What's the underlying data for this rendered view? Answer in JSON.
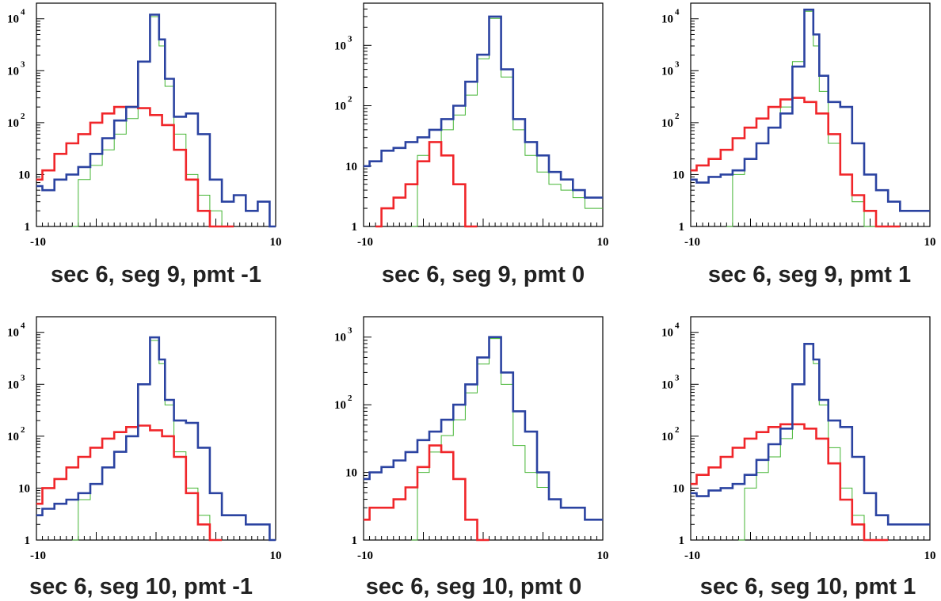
{
  "colors": {
    "blue": "#2b43a1",
    "red": "#f0262a",
    "green": "#44b533",
    "axis": "#000000"
  },
  "panel_labels": [
    "sec 6, seg 9, pmt -1",
    "sec 6, seg 9, pmt 0",
    "sec 6, seg 9, pmt 1",
    "sec 6, seg 10, pmt -1",
    "sec 6, seg 10, pmt 0",
    "sec 6, seg 10, pmt 1"
  ],
  "chart_data": [
    {
      "type": "line",
      "title": "sec 6, seg 9, pmt -1",
      "xlim": [
        -10,
        10
      ],
      "yscale": "log",
      "ylim": [
        1,
        20000
      ],
      "xtick_labels": [
        "-10",
        "10"
      ],
      "ytick_labels": [
        "1",
        "10",
        "10 2",
        "10 3",
        "10 4"
      ],
      "series": [
        {
          "color": "blue",
          "x": [
            -10,
            -9,
            -8,
            -7,
            -6,
            -5,
            -4,
            -3,
            -2,
            -1,
            0,
            0.5,
            1,
            2,
            3,
            4,
            5,
            6,
            7,
            8,
            9,
            10
          ],
          "y": [
            6,
            5,
            8,
            10,
            14,
            25,
            50,
            110,
            200,
            1500,
            12000,
            4000,
            700,
            130,
            150,
            60,
            8,
            3,
            4,
            2,
            3,
            1
          ]
        },
        {
          "color": "red",
          "x": [
            -10,
            -9,
            -8,
            -7,
            -6,
            -5,
            -4,
            -3,
            -2,
            -1,
            0,
            1,
            2,
            3,
            4,
            5,
            6
          ],
          "y": [
            8,
            12,
            25,
            40,
            60,
            100,
            150,
            200,
            200,
            190,
            140,
            90,
            30,
            8,
            2,
            1,
            1
          ]
        },
        {
          "color": "green",
          "x": [
            -7,
            -6,
            -5,
            -4,
            -3,
            -2,
            -1,
            0,
            0.5,
            1,
            2,
            3,
            4,
            5,
            6
          ],
          "y": [
            1,
            8,
            15,
            30,
            60,
            120,
            1500,
            11000,
            3000,
            500,
            60,
            10,
            4,
            2,
            1
          ]
        }
      ]
    },
    {
      "type": "line",
      "title": "sec 6, seg 9, pmt 0",
      "xlim": [
        -10,
        10
      ],
      "yscale": "log",
      "ylim": [
        1,
        5000
      ],
      "xtick_labels": [
        "-10",
        "10"
      ],
      "ytick_labels": [
        "1",
        "10",
        "10 2",
        "10 3"
      ],
      "series": [
        {
          "color": "blue",
          "x": [
            -10,
            -9,
            -8,
            -7,
            -6,
            -5,
            -4,
            -3,
            -2,
            -1,
            0,
            1,
            2,
            3,
            4,
            5,
            6,
            7,
            8,
            9,
            10
          ],
          "y": [
            10,
            12,
            18,
            20,
            25,
            30,
            40,
            60,
            100,
            250,
            700,
            3000,
            400,
            60,
            25,
            15,
            8,
            6,
            4,
            3,
            3
          ]
        },
        {
          "color": "red",
          "x": [
            -9,
            -8,
            -7,
            -6,
            -5,
            -4,
            -3,
            -2,
            -1
          ],
          "y": [
            1,
            2,
            3,
            5,
            12,
            25,
            15,
            5,
            1
          ]
        },
        {
          "color": "green",
          "x": [
            -6,
            -5,
            -4,
            -3,
            -2,
            -1,
            0,
            1,
            2,
            3,
            4,
            5,
            6,
            7,
            8,
            9,
            10
          ],
          "y": [
            1,
            15,
            25,
            40,
            70,
            150,
            600,
            2800,
            300,
            40,
            15,
            8,
            5,
            4,
            3,
            2,
            2
          ]
        }
      ]
    },
    {
      "type": "line",
      "title": "sec 6, seg 9, pmt 1",
      "xlim": [
        -10,
        10
      ],
      "yscale": "log",
      "ylim": [
        1,
        20000
      ],
      "xtick_labels": [
        "-10",
        "10"
      ],
      "ytick_labels": [
        "1",
        "10",
        "10 2",
        "10 3",
        "10 4"
      ],
      "series": [
        {
          "color": "blue",
          "x": [
            -10,
            -9,
            -8,
            -7,
            -6,
            -5,
            -4,
            -3,
            -2,
            -1,
            0,
            0.5,
            1,
            2,
            3,
            4,
            5,
            6,
            7,
            8,
            9,
            10
          ],
          "y": [
            8,
            7,
            9,
            10,
            12,
            20,
            40,
            80,
            150,
            1200,
            15000,
            5000,
            800,
            250,
            200,
            40,
            10,
            5,
            3,
            2,
            2,
            2
          ]
        },
        {
          "color": "red",
          "x": [
            -10,
            -9,
            -8,
            -7,
            -6,
            -5,
            -4,
            -3,
            -2,
            -1,
            0,
            1,
            2,
            3,
            4,
            5,
            6,
            7
          ],
          "y": [
            12,
            15,
            20,
            30,
            50,
            80,
            120,
            200,
            280,
            300,
            250,
            150,
            60,
            10,
            4,
            2,
            1,
            1
          ]
        },
        {
          "color": "green",
          "x": [
            -7,
            -6,
            -5,
            -4,
            -3,
            -2,
            -1,
            0,
            0.5,
            1,
            2,
            3,
            4,
            5
          ],
          "y": [
            1,
            10,
            20,
            40,
            80,
            200,
            1500,
            14000,
            3000,
            400,
            40,
            10,
            3,
            1
          ]
        }
      ]
    },
    {
      "type": "line",
      "title": "sec 6, seg 10, pmt -1",
      "xlim": [
        -10,
        10
      ],
      "yscale": "log",
      "ylim": [
        1,
        20000
      ],
      "xtick_labels": [
        "-10",
        "10"
      ],
      "ytick_labels": [
        "1",
        "10",
        "10 2",
        "10 3",
        "10 4"
      ],
      "series": [
        {
          "color": "blue",
          "x": [
            -10,
            -9,
            -8,
            -7,
            -6,
            -5,
            -4,
            -3,
            -2,
            -1,
            0,
            0.5,
            1,
            2,
            3,
            4,
            5,
            6,
            7,
            8,
            9,
            10
          ],
          "y": [
            3,
            4,
            5,
            6,
            8,
            12,
            25,
            50,
            100,
            1000,
            8000,
            3000,
            500,
            200,
            180,
            60,
            8,
            3,
            3,
            2,
            2,
            1
          ]
        },
        {
          "color": "red",
          "x": [
            -10,
            -9,
            -8,
            -7,
            -6,
            -5,
            -4,
            -3,
            -2,
            -1,
            0,
            1,
            2,
            3,
            4,
            5
          ],
          "y": [
            5,
            10,
            15,
            25,
            40,
            60,
            90,
            120,
            150,
            160,
            130,
            100,
            40,
            8,
            2,
            1
          ]
        },
        {
          "color": "green",
          "x": [
            -7,
            -6,
            -5,
            -4,
            -3,
            -2,
            -1,
            0,
            0.5,
            1,
            2,
            3,
            4,
            5
          ],
          "y": [
            1,
            6,
            12,
            25,
            50,
            100,
            1000,
            7000,
            2500,
            400,
            50,
            10,
            3,
            1
          ]
        }
      ]
    },
    {
      "type": "line",
      "title": "sec 6, seg 10, pmt 0",
      "xlim": [
        -10,
        10
      ],
      "yscale": "log",
      "ylim": [
        1,
        2000
      ],
      "xtick_labels": [
        "-10",
        "10"
      ],
      "ytick_labels": [
        "1",
        "10",
        "10 2",
        "10 3"
      ],
      "series": [
        {
          "color": "blue",
          "x": [
            -10,
            -9,
            -8,
            -7,
            -6,
            -5,
            -4,
            -3,
            -2,
            -1,
            0,
            1,
            2,
            3,
            4,
            5,
            6,
            7,
            8,
            9,
            10
          ],
          "y": [
            8,
            10,
            12,
            15,
            20,
            30,
            40,
            60,
            100,
            200,
            500,
            1000,
            300,
            80,
            40,
            10,
            4,
            3,
            3,
            2,
            2
          ]
        },
        {
          "color": "red",
          "x": [
            -10,
            -9,
            -8,
            -7,
            -6,
            -5,
            -4,
            -3,
            -2,
            -1,
            0
          ],
          "y": [
            2,
            3,
            3,
            4,
            6,
            12,
            25,
            20,
            8,
            2,
            1
          ]
        },
        {
          "color": "green",
          "x": [
            -6,
            -5,
            -4,
            -3,
            -2,
            -1,
            0,
            1,
            2,
            3,
            4,
            5,
            6,
            7,
            8,
            9,
            10
          ],
          "y": [
            1,
            10,
            20,
            35,
            60,
            150,
            400,
            950,
            200,
            25,
            10,
            6,
            4,
            3,
            3,
            2,
            2
          ]
        }
      ]
    },
    {
      "type": "line",
      "title": "sec 6, seg 10, pmt 1",
      "xlim": [
        -10,
        10
      ],
      "yscale": "log",
      "ylim": [
        1,
        20000
      ],
      "xtick_labels": [
        "-10",
        "10"
      ],
      "ytick_labels": [
        "1",
        "10",
        "10 2",
        "10 3",
        "10 4"
      ],
      "series": [
        {
          "color": "blue",
          "x": [
            -10,
            -9,
            -8,
            -7,
            -6,
            -5,
            -4,
            -3,
            -2,
            -1,
            0,
            0.5,
            1,
            2,
            3,
            4,
            5,
            6,
            7,
            8,
            9,
            10
          ],
          "y": [
            8,
            7,
            9,
            10,
            12,
            18,
            35,
            70,
            140,
            1000,
            6000,
            3000,
            500,
            200,
            150,
            40,
            8,
            3,
            2,
            2,
            2,
            2
          ]
        },
        {
          "color": "red",
          "x": [
            -10,
            -9,
            -8,
            -7,
            -6,
            -5,
            -4,
            -3,
            -2,
            -1,
            0,
            1,
            2,
            3,
            4,
            5,
            6
          ],
          "y": [
            12,
            18,
            25,
            40,
            60,
            90,
            120,
            150,
            170,
            170,
            140,
            90,
            30,
            6,
            2,
            1,
            1
          ]
        },
        {
          "color": "green",
          "x": [
            -6,
            -5,
            -4,
            -3,
            -2,
            -1,
            0,
            0.5,
            1,
            2,
            3,
            4,
            5
          ],
          "y": [
            1,
            10,
            20,
            40,
            90,
            1000,
            6000,
            2500,
            400,
            60,
            10,
            3,
            1
          ]
        }
      ]
    }
  ]
}
